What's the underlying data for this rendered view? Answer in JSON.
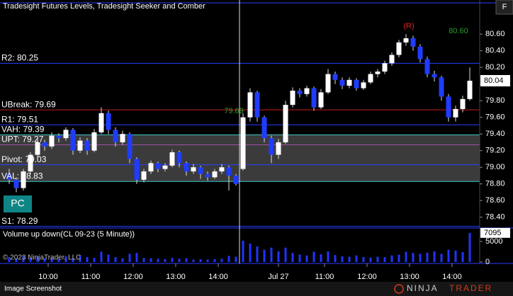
{
  "chart_data": {
    "type": "candlestick",
    "title": "Tradesight Futures Levels, Tradesight Seeker and Comber",
    "up_color": "#ffffff",
    "down_color": "#1f3cff",
    "xlim": [
      -1.3,
      66.4
    ],
    "xticks": [
      {
        "value": 5.5,
        "label": "10:00"
      },
      {
        "value": 11.5,
        "label": "11:00"
      },
      {
        "value": 17.5,
        "label": "12:00"
      },
      {
        "value": 23.5,
        "label": "13:00"
      },
      {
        "value": 29.5,
        "label": "14:00"
      },
      {
        "value": 38,
        "label": "Jul 27"
      },
      {
        "value": 44.5,
        "label": "11:00"
      },
      {
        "value": 50.5,
        "label": "12:00"
      },
      {
        "value": 56.5,
        "label": "13:00"
      },
      {
        "value": 62.5,
        "label": "14:00"
      }
    ],
    "ylim": [
      78.27,
      81.01
    ],
    "yticks": [
      {
        "value": 78.4,
        "label": "78.40"
      },
      {
        "value": 78.6,
        "label": "78.60"
      },
      {
        "value": 78.8,
        "label": "78.80"
      },
      {
        "value": 79.0,
        "label": "79.00"
      },
      {
        "value": 79.2,
        "label": "79.20"
      },
      {
        "value": 79.4,
        "label": "79.40"
      },
      {
        "value": 79.6,
        "label": "79.60"
      },
      {
        "value": 79.8,
        "label": "79.80"
      },
      {
        "value": 80.0,
        "label": "80.00"
      },
      {
        "value": 80.2,
        "label": "80.20"
      },
      {
        "value": 80.4,
        "label": "80.40"
      },
      {
        "value": 80.6,
        "label": "80.60"
      }
    ],
    "candles": [
      [
        78.92,
        78.98,
        78.8,
        78.85
      ],
      [
        78.85,
        78.88,
        78.7,
        78.75
      ],
      [
        78.75,
        78.98,
        78.72,
        78.95
      ],
      [
        78.95,
        79.18,
        78.92,
        79.15
      ],
      [
        79.15,
        79.34,
        79.12,
        79.3
      ],
      [
        79.3,
        79.33,
        79.2,
        79.25
      ],
      [
        79.25,
        79.42,
        79.22,
        79.38
      ],
      [
        79.38,
        79.41,
        79.3,
        79.35
      ],
      [
        79.35,
        79.48,
        79.32,
        79.45
      ],
      [
        79.45,
        79.47,
        79.15,
        79.2
      ],
      [
        79.2,
        79.36,
        79.17,
        79.32
      ],
      [
        79.32,
        79.35,
        79.15,
        79.2
      ],
      [
        79.2,
        79.46,
        79.18,
        79.42
      ],
      [
        79.42,
        79.72,
        79.4,
        79.65
      ],
      [
        79.65,
        79.68,
        79.4,
        79.45
      ],
      [
        79.45,
        79.48,
        79.25,
        79.3
      ],
      [
        79.3,
        79.44,
        79.27,
        79.4
      ],
      [
        79.4,
        79.42,
        79.05,
        79.1
      ],
      [
        79.1,
        79.12,
        78.8,
        78.85
      ],
      [
        78.85,
        78.98,
        78.82,
        78.95
      ],
      [
        78.95,
        79.08,
        78.92,
        79.05
      ],
      [
        79.05,
        79.07,
        78.94,
        78.98
      ],
      [
        78.98,
        79.05,
        78.95,
        79.02
      ],
      [
        79.02,
        79.21,
        79.0,
        79.18
      ],
      [
        79.18,
        79.2,
        79.0,
        79.05
      ],
      [
        79.05,
        79.07,
        78.9,
        78.95
      ],
      [
        78.95,
        79.04,
        78.92,
        79.0
      ],
      [
        79.0,
        79.02,
        78.86,
        78.92
      ],
      [
        78.92,
        78.95,
        78.84,
        78.88
      ],
      [
        78.88,
        78.98,
        78.86,
        78.95
      ],
      [
        78.95,
        79.04,
        78.92,
        79.0
      ],
      [
        79.0,
        79.02,
        78.72,
        78.9
      ],
      [
        78.9,
        78.92,
        78.78,
        78.8
      ],
      [
        78.98,
        79.65,
        78.96,
        79.6
      ],
      [
        79.6,
        79.95,
        79.55,
        79.9
      ],
      [
        79.9,
        79.92,
        79.55,
        79.6
      ],
      [
        79.6,
        79.62,
        79.3,
        79.35
      ],
      [
        79.35,
        79.38,
        79.05,
        79.15
      ],
      [
        79.15,
        79.34,
        79.1,
        79.3
      ],
      [
        79.3,
        79.8,
        79.28,
        79.75
      ],
      [
        79.75,
        79.96,
        79.72,
        79.92
      ],
      [
        79.92,
        79.95,
        79.84,
        79.88
      ],
      [
        79.88,
        79.98,
        79.85,
        79.95
      ],
      [
        79.95,
        79.97,
        79.68,
        79.72
      ],
      [
        79.72,
        79.94,
        79.7,
        79.9
      ],
      [
        79.9,
        80.18,
        79.88,
        80.12
      ],
      [
        80.12,
        80.15,
        80.0,
        80.05
      ],
      [
        80.05,
        80.08,
        79.94,
        79.98
      ],
      [
        79.98,
        80.08,
        79.95,
        80.05
      ],
      [
        80.05,
        80.07,
        79.92,
        79.95
      ],
      [
        79.95,
        80.05,
        79.93,
        80.02
      ],
      [
        80.02,
        80.15,
        80.0,
        80.12
      ],
      [
        80.12,
        80.18,
        80.08,
        80.15
      ],
      [
        80.15,
        80.28,
        80.12,
        80.25
      ],
      [
        80.25,
        80.38,
        80.22,
        80.35
      ],
      [
        80.35,
        80.53,
        80.32,
        80.5
      ],
      [
        80.5,
        80.6,
        80.46,
        80.55
      ],
      [
        80.55,
        80.58,
        80.4,
        80.45
      ],
      [
        80.45,
        80.48,
        80.26,
        80.3
      ],
      [
        80.3,
        80.33,
        80.08,
        80.12
      ],
      [
        80.12,
        80.16,
        80.03,
        80.08
      ],
      [
        80.08,
        80.1,
        79.8,
        79.85
      ],
      [
        79.85,
        79.88,
        79.55,
        79.6
      ],
      [
        79.6,
        79.74,
        79.55,
        79.7
      ],
      [
        79.7,
        79.86,
        79.66,
        79.82
      ],
      [
        79.82,
        80.2,
        79.8,
        80.04
      ]
    ],
    "levels": [
      {
        "label": "R2: 80.25",
        "value": 80.25,
        "color": "#2a3cff"
      },
      {
        "label": "UBreak: 79.69",
        "value": 79.69,
        "color": "#c81818"
      },
      {
        "label": "R1: 79.51",
        "value": 79.51,
        "color": "#2a3cff"
      },
      {
        "label": "VAH: 79.39",
        "value": 79.39,
        "color": "#3cc8c8"
      },
      {
        "label": "UPT: 79.27",
        "value": 79.27,
        "color": "#a050a0"
      },
      {
        "label": "Pivot: 79.03",
        "value": 79.03,
        "color": "#2a3cff"
      },
      {
        "label": "VAL: 78.83",
        "value": 78.83,
        "color": "#3cc8c8"
      },
      {
        "label": "S1: 78.29",
        "value": 78.29,
        "color": "#2a3cff"
      }
    ],
    "value_area_color": "#4a4a4a",
    "annotations": [
      {
        "text": "(R)",
        "color": "#e02020"
      },
      {
        "text": "80.60",
        "color": "#2f9a2f"
      },
      {
        "text": "79.69",
        "color": "#2f9a2f"
      }
    ],
    "volume": {
      "title": "Volume up down(CL 09-23 (5 Minute))",
      "color": "#2233ff",
      "ylim": [
        0,
        7760
      ],
      "yticks": [
        0,
        5000
      ],
      "values": [
        1200,
        900,
        1500,
        1000,
        1300,
        900,
        1000,
        700,
        1400,
        900,
        1600,
        1200,
        1000,
        2500,
        1800,
        1200,
        900,
        2000,
        2200,
        1000,
        900,
        800,
        700,
        1000,
        800,
        900,
        600,
        700,
        600,
        700,
        800,
        1500,
        1300,
        5200,
        4500,
        3800,
        3000,
        3500,
        2600,
        3500,
        2200,
        1800,
        1600,
        2500,
        1900,
        2600,
        1700,
        1400,
        1300,
        1600,
        1200,
        1100,
        1300,
        1200,
        1600,
        1800,
        2500,
        2200,
        2000,
        2300,
        2600,
        2000,
        3000,
        2800,
        2400,
        7095
      ]
    }
  },
  "ui": {
    "pc_button": "PC",
    "copyright": "© 2023 NinjaTrader, LLC",
    "f_button": "F",
    "footer_left": "Image Screenshot",
    "logo_left": "NINJA",
    "logo_right": "TRADER"
  }
}
